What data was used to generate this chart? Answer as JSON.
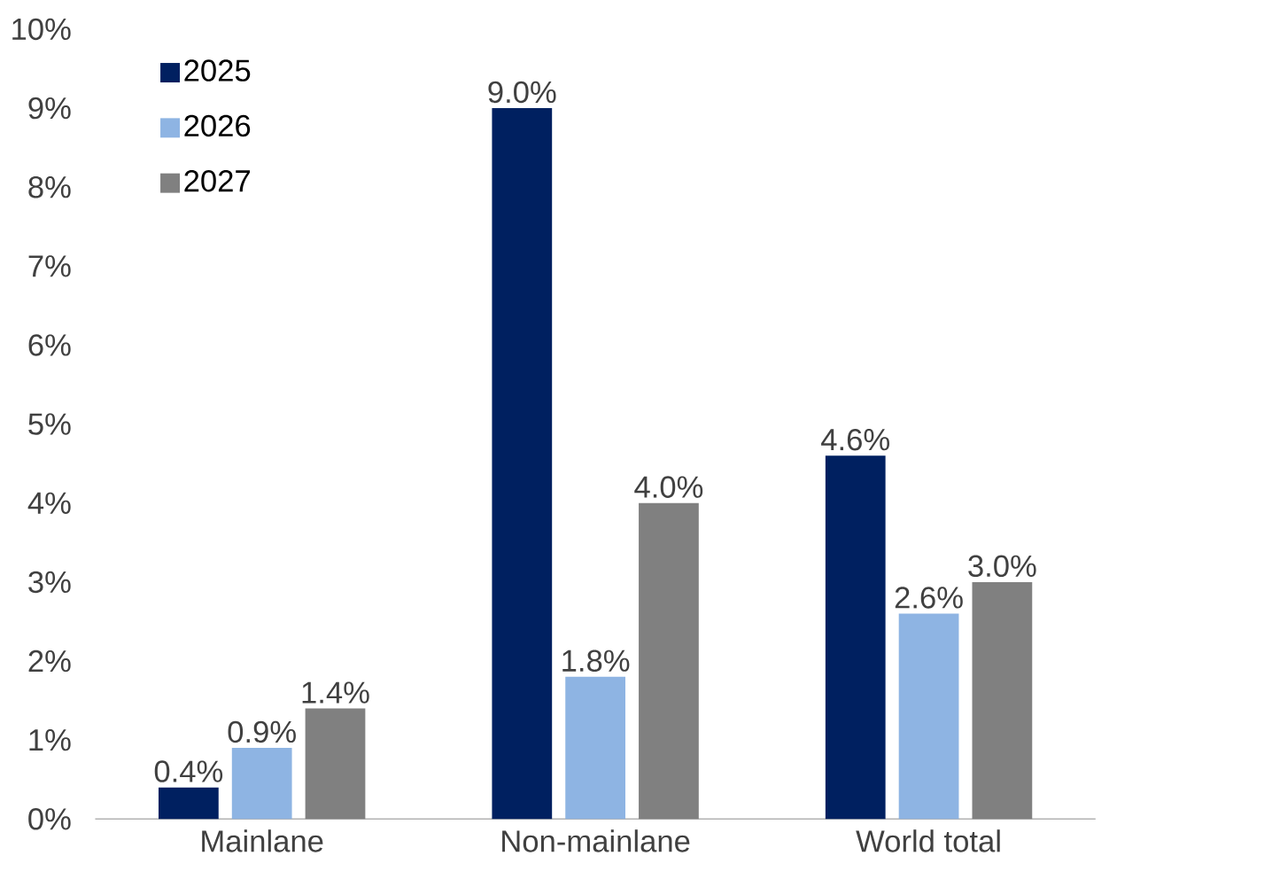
{
  "chart_data": {
    "type": "bar",
    "categories": [
      "Mainlane",
      "Non-mainlane",
      "World total"
    ],
    "series": [
      {
        "name": "2025",
        "color": "#002060",
        "values": [
          0.4,
          9.0,
          4.6
        ],
        "value_labels": [
          "0.4%",
          "9.0%",
          "4.6%"
        ]
      },
      {
        "name": "2026",
        "color": "#8eb4e3",
        "values": [
          0.9,
          1.8,
          2.6
        ],
        "value_labels": [
          "0.9%",
          "1.8%",
          "2.6%"
        ]
      },
      {
        "name": "2027",
        "color": "#808080",
        "values": [
          1.4,
          4.0,
          3.0
        ],
        "value_labels": [
          "1.4%",
          "4.0%",
          "3.0%"
        ]
      }
    ],
    "ylim": [
      0,
      10
    ],
    "yticks": [
      {
        "value": 0,
        "label": "0%"
      },
      {
        "value": 1,
        "label": "1%"
      },
      {
        "value": 2,
        "label": "2%"
      },
      {
        "value": 3,
        "label": "3%"
      },
      {
        "value": 4,
        "label": "4%"
      },
      {
        "value": 5,
        "label": "5%"
      },
      {
        "value": 6,
        "label": "6%"
      },
      {
        "value": 7,
        "label": "7%"
      },
      {
        "value": 8,
        "label": "8%"
      },
      {
        "value": 9,
        "label": "9%"
      },
      {
        "value": 10,
        "label": "10%"
      }
    ],
    "legend": "top left"
  }
}
